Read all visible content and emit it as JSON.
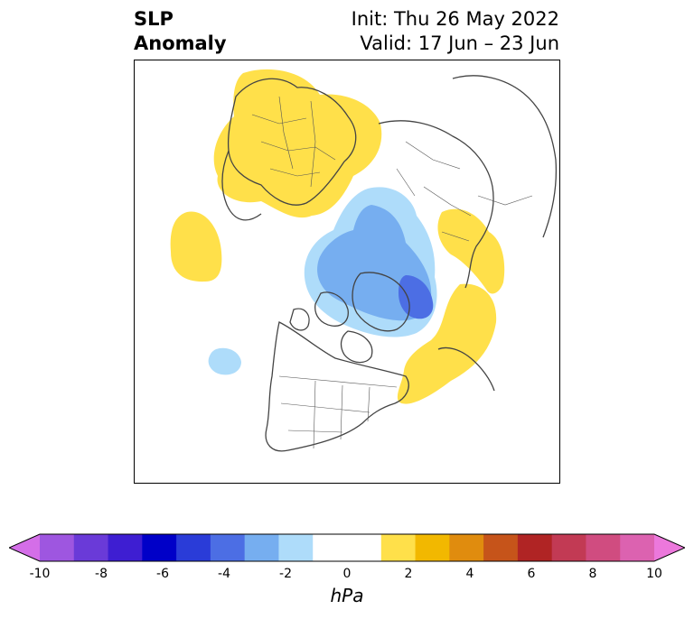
{
  "title": {
    "line1": "SLP",
    "line2": "Anomaly",
    "init": "Init: Thu 26 May 2022",
    "valid": "Valid: 17 Jun – 23 Jun"
  },
  "colorbar": {
    "label": "hPa",
    "range": [
      -10,
      10
    ],
    "ticks": [
      "-10",
      "-8",
      "-6",
      "-4",
      "-2",
      "0",
      "2",
      "4",
      "6",
      "8",
      "10"
    ],
    "colors": [
      "#d46ee8",
      "#9e56e0",
      "#6a3ad8",
      "#3e1ed2",
      "#0000c8",
      "#2a3cd8",
      "#4c6ee4",
      "#76aef0",
      "#aedcfa",
      "#ffffff",
      "#ffffff",
      "#ffe04a",
      "#f2b800",
      "#e08c0e",
      "#c6541a",
      "#b02424",
      "#c23a54",
      "#d04c80",
      "#dc62b0",
      "#ec78dc"
    ],
    "extend": "both"
  },
  "anomalies": {
    "positive_color": "#ffe04a",
    "negative_colors": [
      "#aedcfa",
      "#76aef0",
      "#4c6ee4"
    ]
  }
}
